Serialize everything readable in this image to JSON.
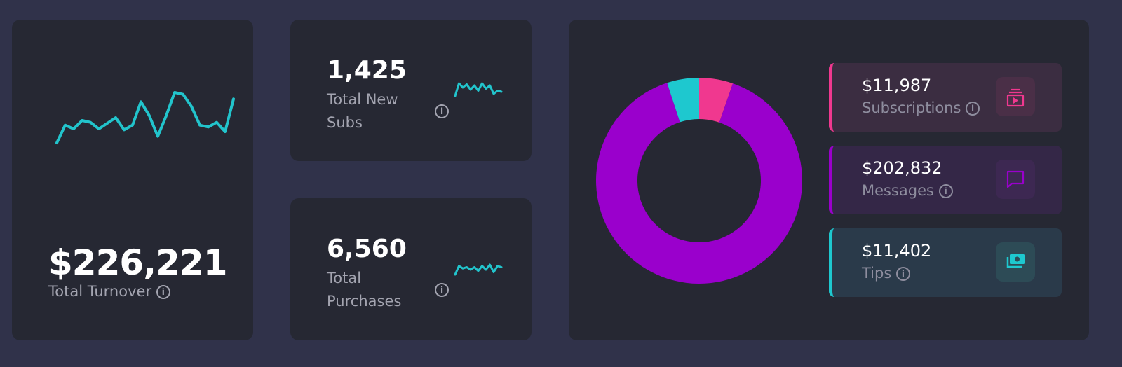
{
  "turnover": {
    "value": "$226,221",
    "label": "Total Turnover",
    "sparkline": [
      0,
      38,
      30,
      48,
      44,
      30,
      42,
      54,
      28,
      38,
      88,
      58,
      14,
      58,
      108,
      104,
      78,
      38,
      34,
      44,
      24,
      94
    ]
  },
  "subs": {
    "value": "1,425",
    "label_line1": "Total New",
    "label_line2": "Subs",
    "sparkline": [
      2,
      14,
      10,
      13,
      8,
      12,
      7,
      14,
      9,
      12,
      4,
      7,
      6
    ]
  },
  "purchases": {
    "value": "6,560",
    "label_line1": "Total",
    "label_line2": "Purchases",
    "sparkline": [
      2,
      9,
      7,
      8,
      6,
      8,
      5,
      9,
      6,
      10,
      4,
      9,
      8
    ]
  },
  "breakdown": [
    {
      "amount": "$11,987",
      "label": "Subscriptions",
      "value": 11987,
      "color": "#f0388f",
      "bg": "#3b2d41",
      "iconbg": "#4a2f47",
      "icon": "subscriptions-play-icon"
    },
    {
      "amount": "$202,832",
      "label": "Messages",
      "value": 202832,
      "color": "#9a00cc",
      "bg": "#342747",
      "iconbg": "#3d2852",
      "icon": "message-bubble-icon"
    },
    {
      "amount": "$11,402",
      "label": "Tips",
      "value": 11402,
      "color": "#1ec8cf",
      "bg": "#2a3a4a",
      "iconbg": "#2d4b56",
      "icon": "money-cash-icon"
    }
  ],
  "info_glyph": "i",
  "line_color": "#22c4cc"
}
